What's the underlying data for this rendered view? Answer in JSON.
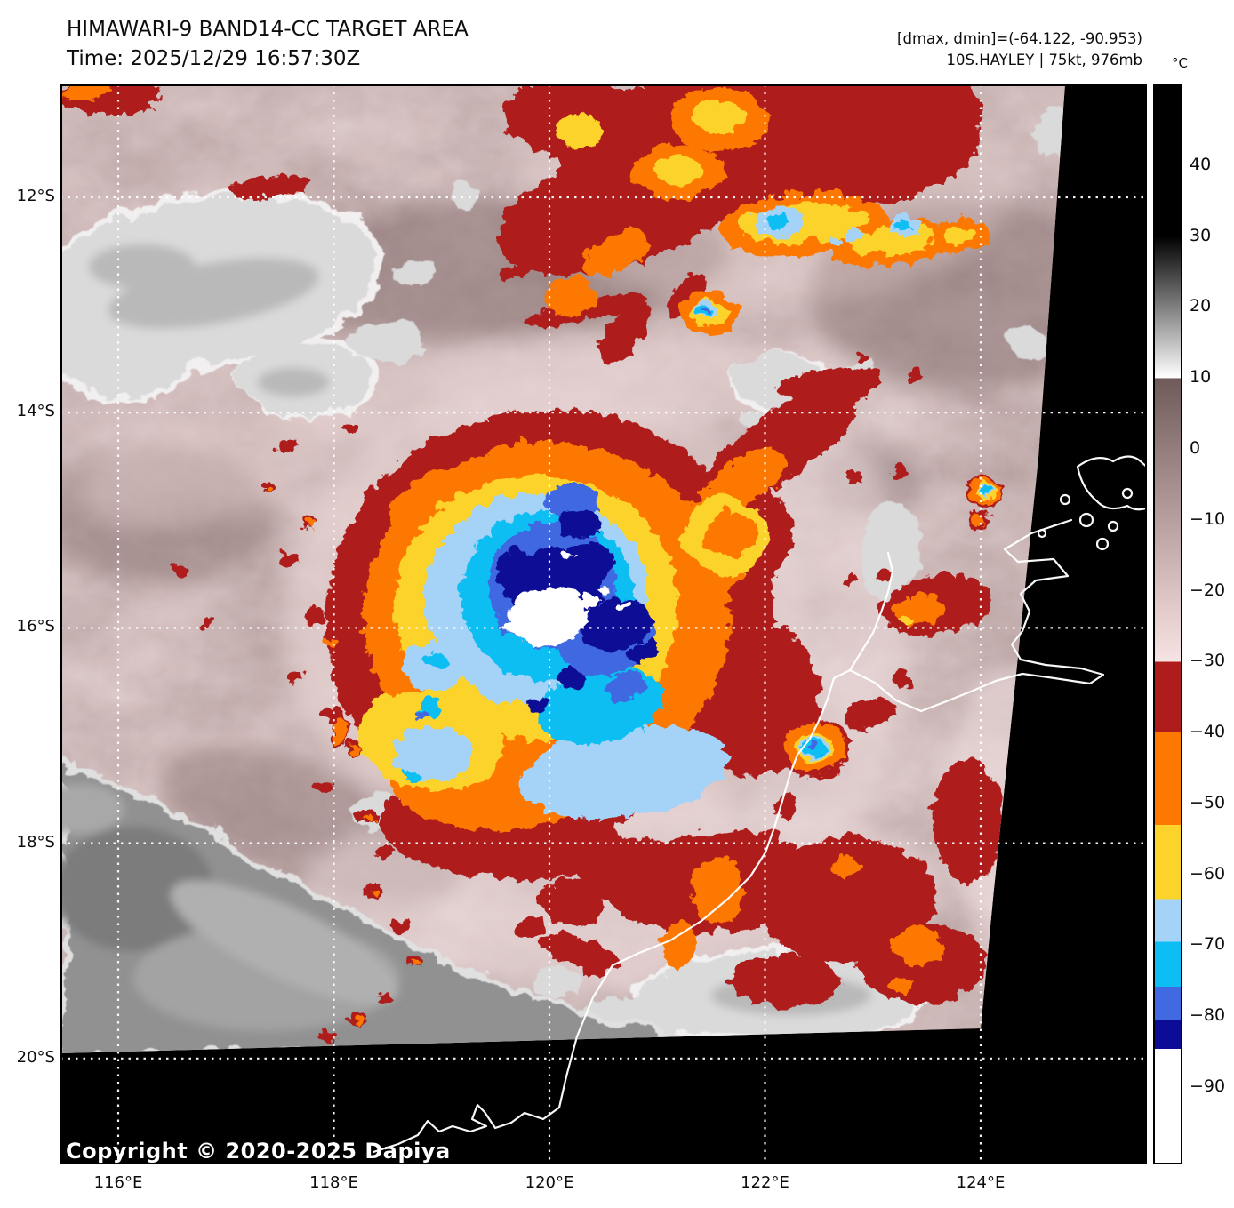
{
  "header": {
    "title": "HIMAWARI-9 BAND14-CC TARGET AREA",
    "time_line": "Time: 2025/12/29 16:57:30Z"
  },
  "annotations": {
    "dmax_dmin": "[dmax, dmin]=(-64.122, -90.953)",
    "storm_info": "10S.HAYLEY | 75kt, 976mb"
  },
  "map": {
    "copyright": "Copyright © 2020-2025 Dapiya"
  },
  "axes": {
    "lat_ticks": [
      {
        "label": "12°S",
        "lat": 12
      },
      {
        "label": "14°S",
        "lat": 14
      },
      {
        "label": "16°S",
        "lat": 16
      },
      {
        "label": "18°S",
        "lat": 18
      },
      {
        "label": "20°S",
        "lat": 20
      }
    ],
    "lon_ticks": [
      {
        "label": "116°E",
        "lon": 116
      },
      {
        "label": "118°E",
        "lon": 118
      },
      {
        "label": "120°E",
        "lon": 120
      },
      {
        "label": "122°E",
        "lon": 122
      },
      {
        "label": "124°E",
        "lon": 124
      }
    ]
  },
  "colorbar": {
    "unit_label": "°C",
    "top_value": 51.4,
    "bottom_value": -100.9,
    "ticks": [
      {
        "label": "40",
        "value": 40
      },
      {
        "label": "30",
        "value": 30
      },
      {
        "label": "20",
        "value": 20
      },
      {
        "label": "10",
        "value": 10
      },
      {
        "label": "0",
        "value": 0
      },
      {
        "label": "−10",
        "value": -10
      },
      {
        "label": "−20",
        "value": -20
      },
      {
        "label": "−30",
        "value": -30
      },
      {
        "label": "−40",
        "value": -40
      },
      {
        "label": "−50",
        "value": -50
      },
      {
        "label": "−60",
        "value": -60
      },
      {
        "label": "−70",
        "value": -70
      },
      {
        "label": "−80",
        "value": -80
      },
      {
        "label": "−90",
        "value": -90
      }
    ],
    "stops": [
      [
        "#000000",
        0
      ],
      [
        "#000000",
        14.05
      ],
      [
        "#ffffff",
        27.18
      ],
      [
        "#6f5a5a",
        27.19
      ],
      [
        "#937d7d",
        33.75
      ],
      [
        "#b89f9f",
        40.31
      ],
      [
        "#dbc2c2",
        46.88
      ],
      [
        "#f6e3e3",
        53.45
      ],
      [
        "#ae1c1c",
        53.46
      ],
      [
        "#ae1c1c",
        60.01
      ],
      [
        "#fd7800",
        60.02
      ],
      [
        "#fd7800",
        68.55
      ],
      [
        "#fcd32a",
        68.56
      ],
      [
        "#fcd32a",
        75.44
      ],
      [
        "#a5d2f7",
        75.45
      ],
      [
        "#a5d2f7",
        79.38
      ],
      [
        "#0cbef3",
        79.39
      ],
      [
        "#0cbef3",
        83.52
      ],
      [
        "#4169e1",
        83.53
      ],
      [
        "#4169e1",
        86.67
      ],
      [
        "#0c0c96",
        86.68
      ],
      [
        "#0c0c96",
        89.3
      ],
      [
        "#ffffff",
        89.31
      ],
      [
        "#ffffff",
        100
      ]
    ]
  },
  "palette": {
    "background_mauve": "#9b8080",
    "dark_red": "#ae1c1c",
    "orange": "#fd7800",
    "yellow": "#fcd32a",
    "light_blue": "#a5d2f7",
    "cyan": "#0cbef3",
    "royal_blue": "#4169e1",
    "navy": "#0c0c96",
    "cloud_gray": "#dadada"
  }
}
